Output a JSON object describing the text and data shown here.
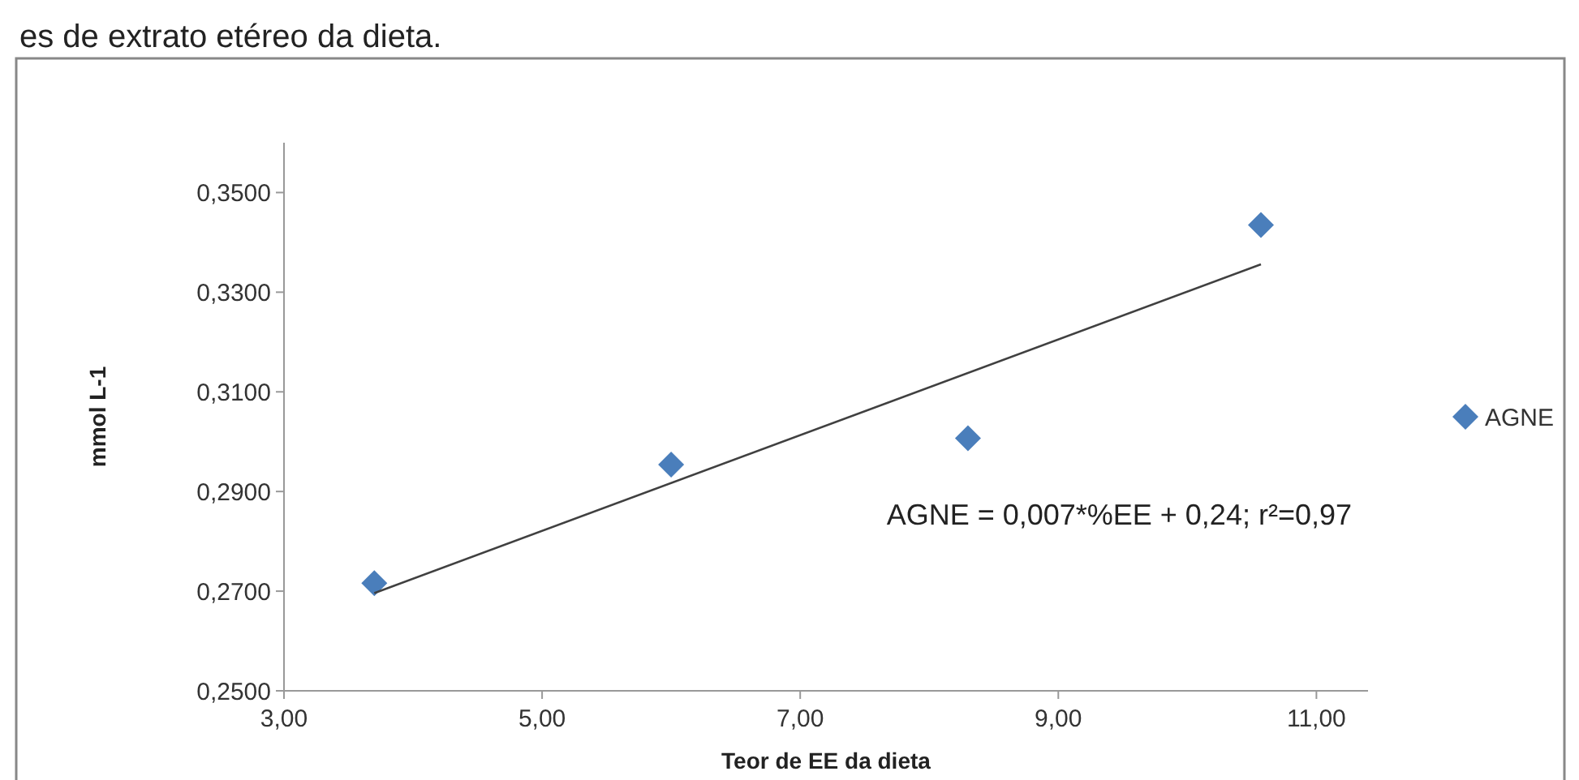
{
  "chart_data": {
    "type": "scatter",
    "title": "es de extrato etéreo da dieta.",
    "xlabel": "Teor de EE da dieta",
    "ylabel": "mmol L-1",
    "x": [
      3.7,
      6.0,
      8.3,
      10.57
    ],
    "series": [
      {
        "name": "AGNE",
        "color": "#4a7ebb",
        "values": [
          0.2716,
          0.2954,
          0.3007,
          0.3435
        ],
        "marker": "diamond"
      },
      {
        "type": "line",
        "color": "#404040",
        "x": [
          3.7,
          10.57
        ],
        "values": [
          0.2696,
          0.3356
        ],
        "marker": "none"
      }
    ],
    "xlim": [
      3,
      11.4
    ],
    "xticks": [
      {
        "value": 3,
        "label": "3,00"
      },
      {
        "value": 5,
        "label": "5,00"
      },
      {
        "value": 7,
        "label": "7,00"
      },
      {
        "value": 9,
        "label": "9,00"
      },
      {
        "value": 11,
        "label": "11,00"
      }
    ],
    "ylim": [
      0.25,
      0.36
    ],
    "yticks": [
      {
        "value": 0.25,
        "label": "0,2500"
      },
      {
        "value": 0.27,
        "label": "0,2700"
      },
      {
        "value": 0.29,
        "label": "0,2900"
      },
      {
        "value": 0.31,
        "label": "0,3100"
      },
      {
        "value": 0.33,
        "label": "0,3300"
      },
      {
        "value": 0.35,
        "label": "0,3500"
      }
    ],
    "annotations": [
      "AGNE = 0,007*%EE + 0,24; r²=0,97"
    ],
    "grid": false,
    "legend": "right"
  }
}
